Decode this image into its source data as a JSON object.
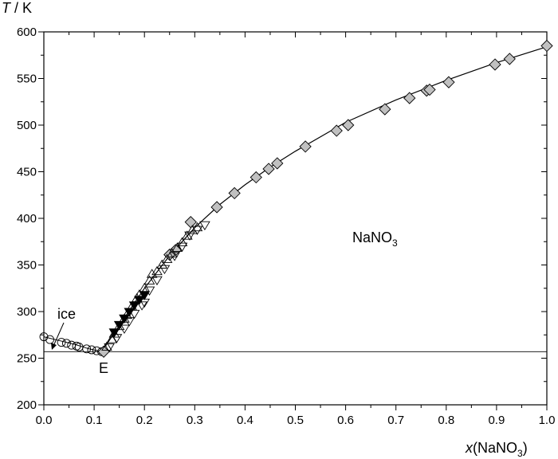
{
  "chart_data": {
    "type": "scatter",
    "ylabel_italic": "T",
    "ylabel_rest": " / K",
    "xlabel_italic": "x",
    "xlabel_rest": "(NaNO",
    "xlabel_sub": "3",
    "xlabel_close": ")",
    "xlim": [
      0,
      1
    ],
    "ylim": [
      200,
      600
    ],
    "grid": false,
    "x_ticks": [
      "0.0",
      "0.1",
      "0.2",
      "0.3",
      "0.4",
      "0.5",
      "0.6",
      "0.7",
      "0.8",
      "0.9",
      "1.0"
    ],
    "y_ticks": [
      "200",
      "250",
      "300",
      "350",
      "400",
      "450",
      "500",
      "550",
      "600"
    ],
    "annotations": {
      "ice": "ice",
      "eutectic": "E",
      "phase_main": "NaNO",
      "phase_sub": "3"
    },
    "eutectic_temperature": 257,
    "series": [
      {
        "marker": "circle-open",
        "points": [
          [
            0,
            273
          ],
          [
            0.012,
            270
          ],
          [
            0.035,
            267
          ],
          [
            0.045,
            266
          ],
          [
            0.055,
            264
          ],
          [
            0.065,
            263
          ],
          [
            0.07,
            262
          ],
          [
            0.085,
            260
          ],
          [
            0.095,
            259
          ],
          [
            0.105,
            258
          ],
          [
            0.115,
            257
          ]
        ]
      },
      {
        "marker": "diamond-gray",
        "points": [
          [
            0.119,
            257
          ],
          [
            0.25,
            361
          ],
          [
            0.262,
            366
          ],
          [
            0.292,
            396
          ],
          [
            0.344,
            412
          ],
          [
            0.379,
            427
          ],
          [
            0.422,
            444
          ],
          [
            0.447,
            453
          ],
          [
            0.464,
            459
          ],
          [
            0.52,
            477
          ],
          [
            0.582,
            494
          ],
          [
            0.605,
            500
          ],
          [
            0.678,
            517
          ],
          [
            0.727,
            529
          ],
          [
            0.761,
            537
          ],
          [
            0.767,
            538
          ],
          [
            0.805,
            546
          ],
          [
            0.897,
            565
          ],
          [
            0.926,
            571
          ],
          [
            1.0,
            585
          ]
        ]
      },
      {
        "marker": "triangle-up-open",
        "points": [
          [
            0.125,
            262
          ],
          [
            0.135,
            270
          ],
          [
            0.14,
            276
          ],
          [
            0.15,
            284
          ],
          [
            0.16,
            292
          ],
          [
            0.165,
            296
          ],
          [
            0.175,
            305
          ],
          [
            0.185,
            314
          ],
          [
            0.19,
            318
          ],
          [
            0.2,
            325
          ],
          [
            0.21,
            333
          ],
          [
            0.215,
            340
          ],
          [
            0.225,
            343
          ],
          [
            0.235,
            350
          ],
          [
            0.245,
            356
          ],
          [
            0.255,
            362
          ],
          [
            0.265,
            368
          ],
          [
            0.275,
            374
          ],
          [
            0.285,
            381
          ],
          [
            0.295,
            387
          ],
          [
            0.305,
            390
          ]
        ]
      },
      {
        "marker": "triangle-down-open",
        "points": [
          [
            0.13,
            262
          ],
          [
            0.145,
            272
          ],
          [
            0.16,
            282
          ],
          [
            0.17,
            290
          ],
          [
            0.18,
            298
          ],
          [
            0.195,
            307
          ],
          [
            0.2,
            310
          ],
          [
            0.21,
            323
          ],
          [
            0.225,
            334
          ],
          [
            0.24,
            346
          ],
          [
            0.26,
            360
          ],
          [
            0.275,
            370
          ],
          [
            0.29,
            382
          ],
          [
            0.305,
            388
          ],
          [
            0.32,
            393
          ]
        ]
      },
      {
        "marker": "triangle-down-filled",
        "points": [
          [
            0.14,
            278
          ],
          [
            0.15,
            286
          ],
          [
            0.16,
            293
          ],
          [
            0.17,
            300
          ],
          [
            0.18,
            307
          ],
          [
            0.19,
            313
          ],
          [
            0.2,
            318
          ]
        ]
      }
    ],
    "curves": {
      "ice_liquidus": [
        [
          0,
          273
        ],
        [
          0.03,
          269
        ],
        [
          0.06,
          265
        ],
        [
          0.09,
          260
        ],
        [
          0.115,
          257
        ]
      ],
      "nano3_liquidus": [
        [
          0.115,
          257
        ],
        [
          0.15,
          285
        ],
        [
          0.2,
          325
        ],
        [
          0.25,
          360
        ],
        [
          0.3,
          390
        ],
        [
          0.35,
          415
        ],
        [
          0.4,
          436
        ],
        [
          0.45,
          455
        ],
        [
          0.5,
          472
        ],
        [
          0.6,
          503
        ],
        [
          0.7,
          527
        ],
        [
          0.8,
          548
        ],
        [
          0.9,
          567
        ],
        [
          1.0,
          584
        ]
      ]
    },
    "colors": {
      "diamond_fill": "#c0c0c0",
      "line": "#000000"
    }
  }
}
